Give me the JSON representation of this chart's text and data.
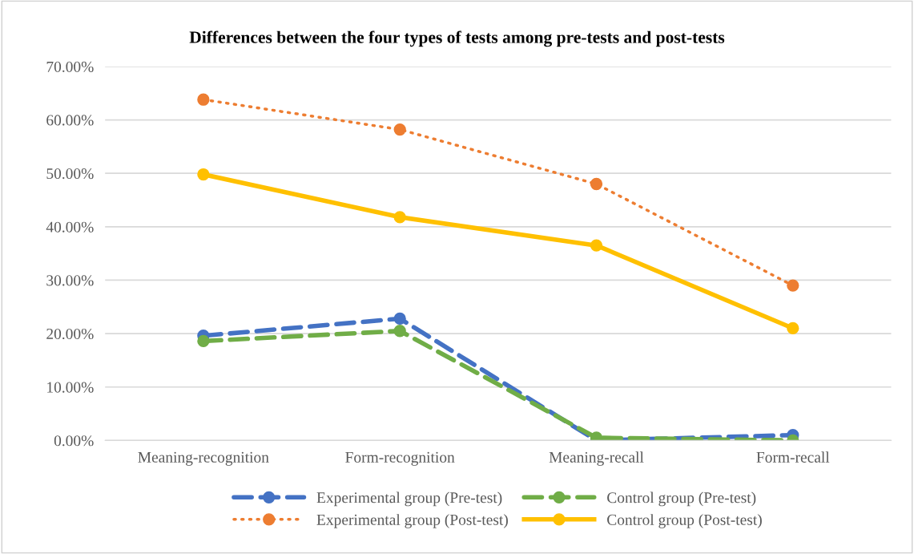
{
  "chart_data": {
    "type": "line",
    "title": "Differences between the four types of tests among pre-tests and post-tests",
    "categories": [
      "Meaning-recognition",
      "Form-recognition",
      "Meaning-recall",
      "Form-recall"
    ],
    "series": [
      {
        "name": "Experimental group (Pre-test)",
        "color": "#4472c4",
        "line_style": "dashed",
        "values": [
          19.6,
          22.8,
          0.0,
          1.0
        ]
      },
      {
        "name": "Experimental group (Post-test)",
        "color": "#ed7d31",
        "line_style": "dotted",
        "values": [
          63.8,
          58.2,
          48.0,
          29.0
        ]
      },
      {
        "name": "Control group (Pre-test)",
        "color": "#70ad47",
        "line_style": "dashed",
        "values": [
          18.6,
          20.5,
          0.5,
          0.0
        ]
      },
      {
        "name": "Control group (Post-test)",
        "color": "#ffc000",
        "line_style": "solid",
        "values": [
          49.8,
          41.8,
          36.5,
          21.0
        ]
      }
    ],
    "ylim": [
      0,
      70
    ],
    "yticks": [
      {
        "value": 0,
        "label": "0.00%"
      },
      {
        "value": 10,
        "label": "10.00%"
      },
      {
        "value": 20,
        "label": "20.00%"
      },
      {
        "value": 30,
        "label": "30.00%"
      },
      {
        "value": 40,
        "label": "40.00%"
      },
      {
        "value": 50,
        "label": "50.00%"
      },
      {
        "value": 60,
        "label": "60.00%"
      },
      {
        "value": 70,
        "label": "70.00%"
      }
    ],
    "grid": "y",
    "legend": "bottom",
    "marker": "circle"
  }
}
